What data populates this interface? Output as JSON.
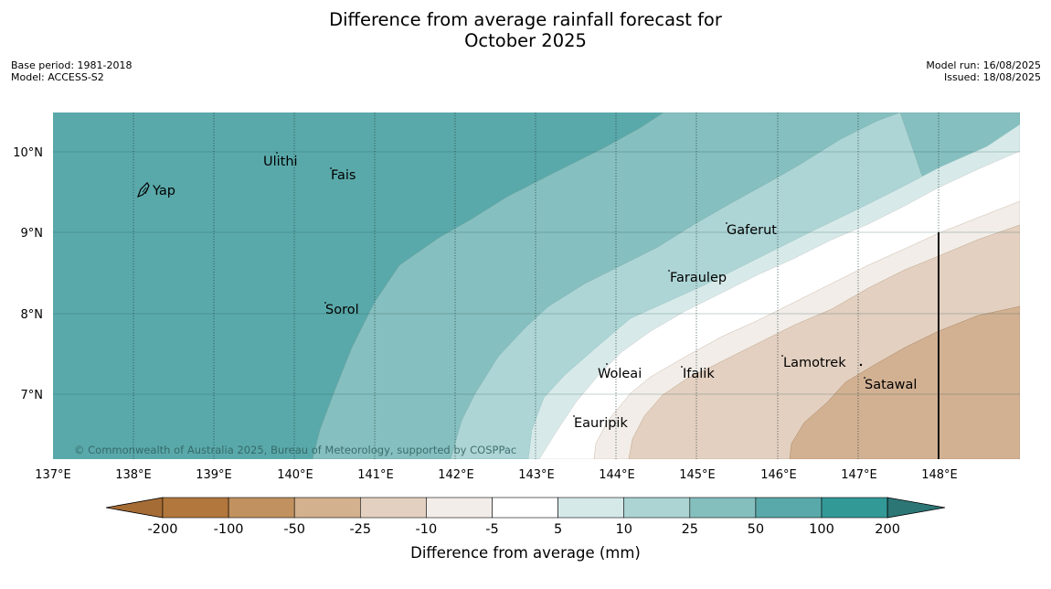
{
  "header": {
    "title_line1": "Difference from average rainfall forecast for",
    "title_line2": "October 2025",
    "base_period": "Base period: 1981-2018",
    "model": "Model: ACCESS-S2",
    "model_run": "Model run: 16/08/2025",
    "issued": "Issued: 18/08/2025"
  },
  "map": {
    "extent": {
      "lon": [
        137,
        149
      ],
      "lat": [
        6.2,
        10.5
      ]
    },
    "lon_ticks": [
      "137°E",
      "138°E",
      "139°E",
      "140°E",
      "141°E",
      "142°E",
      "143°E",
      "144°E",
      "145°E",
      "146°E",
      "147°E",
      "148°E"
    ],
    "lat_ticks": [
      "10°N",
      "9°N",
      "8°N",
      "7°N"
    ],
    "copyright": "© Commonwealth of Australia 2025, Bureau of Meteorology, supported by COSPPac",
    "places": [
      {
        "name": "Yap"
      },
      {
        "name": "Ulithi"
      },
      {
        "name": "Fais"
      },
      {
        "name": "Gaferut"
      },
      {
        "name": "Faraulep"
      },
      {
        "name": "Sorol"
      },
      {
        "name": "Woleai"
      },
      {
        "name": "Ifalik"
      },
      {
        "name": "Lamotrek"
      },
      {
        "name": "Satawal"
      },
      {
        "name": "Eauripik"
      }
    ],
    "colors": {
      "c_50_100": "#5aa9aa",
      "c_25_50": "#86bfbf",
      "c_10_25": "#aed5d5",
      "c_5_10": "#d7eae9",
      "c_m5_5": "#ffffff",
      "c_m10_m5": "#f2ede8",
      "c_m25_m10": "#e3d0c0",
      "c_m50_m25": "#d2b193"
    }
  },
  "colorbar": {
    "label": "Difference from average (mm)",
    "ticks": [
      "-200",
      "-100",
      "-50",
      "-25",
      "-10",
      "-5",
      "5",
      "10",
      "25",
      "50",
      "100",
      "200"
    ],
    "colors": [
      "#a66c35",
      "#b2773d",
      "#c1915f",
      "#d3b08e",
      "#e3d0c0",
      "#f2ede8",
      "#ffffff",
      "#d5e9e8",
      "#abd4d3",
      "#84bfbe",
      "#5aa9aa",
      "#339997",
      "#2c7676"
    ]
  }
}
